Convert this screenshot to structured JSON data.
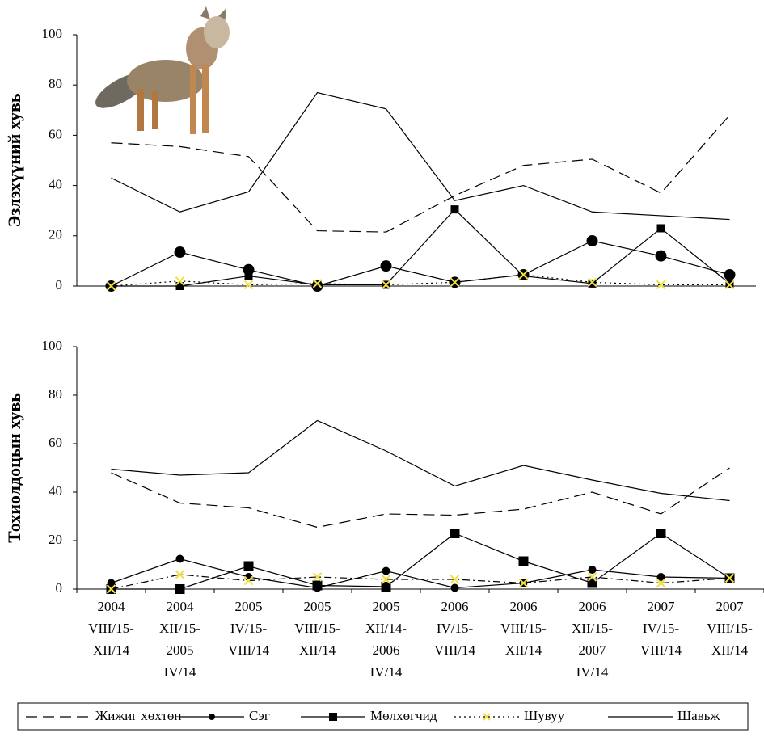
{
  "chart_data": [
    {
      "type": "line",
      "ylabel": "Эзлэхүүний хувь",
      "categories": [
        [
          "2004",
          "VIII/15-",
          "XII/14"
        ],
        [
          "2004",
          "XII/15-",
          "2005",
          "IV/14"
        ],
        [
          "2005",
          "IV/15-",
          "VIII/14"
        ],
        [
          "2005",
          "VIII/15-",
          "XII/14"
        ],
        [
          "2005",
          "XII/14-",
          "2006",
          "IV/14"
        ],
        [
          "2006",
          "IV/15-",
          "VIII/14"
        ],
        [
          "2006",
          "VIII/15-",
          "XII/14"
        ],
        [
          "2006",
          "XII/15-",
          "2007",
          "IV/14"
        ],
        [
          "2007",
          "IV/15-",
          "VIII/14"
        ],
        [
          "2007",
          "VIII/15-",
          "XII/14"
        ]
      ],
      "ylim": [
        0,
        100
      ],
      "yticks": [
        0,
        20,
        40,
        60,
        80,
        100
      ],
      "series": [
        {
          "name": "Жижиг хөхтөн",
          "color": "#000000",
          "style": "dashed",
          "marker": "none",
          "values": [
            57,
            55.5,
            51.5,
            22,
            21.5,
            36,
            48,
            50.5,
            37,
            68
          ]
        },
        {
          "name": "Сэг",
          "color": "#000000",
          "style": "solid",
          "marker": "circle",
          "values": [
            0,
            13.5,
            6.5,
            0,
            8,
            1.5,
            4.5,
            18,
            12,
            4.5
          ]
        },
        {
          "name": "Мөлхөгчид",
          "color": "#000000",
          "style": "solid",
          "marker": "square",
          "values": [
            0,
            0,
            4,
            0.5,
            0.5,
            30.5,
            4,
            1,
            23,
            1
          ]
        },
        {
          "name": "Шувуу",
          "color": "#000000",
          "marker_color": "#f0e040",
          "style": "dotted",
          "marker": "x",
          "values": [
            0,
            2,
            0.5,
            1,
            0.5,
            1.5,
            4.5,
            1.5,
            0.5,
            0.5
          ]
        },
        {
          "name": "Шавьж",
          "color": "#000000",
          "style": "solid",
          "marker": "none",
          "values": [
            43,
            29.5,
            37.5,
            77,
            70.5,
            34,
            40,
            29.5,
            28,
            26.5
          ]
        }
      ]
    },
    {
      "type": "line",
      "ylabel": "Тохиолдоцын хувь",
      "ylim": [
        0,
        100
      ],
      "yticks": [
        0,
        20,
        40,
        60,
        80,
        100
      ],
      "series": [
        {
          "color": "#000000",
          "style": "dashed",
          "marker": "none",
          "values": [
            48,
            35.5,
            33.5,
            25.5,
            31,
            30.5,
            33,
            40,
            31,
            50
          ]
        },
        {
          "color": "#000000",
          "style": "solid",
          "marker": "circle",
          "values": [
            2.5,
            12.5,
            5,
            0.5,
            7.5,
            0.5,
            2.5,
            8,
            5,
            4.5
          ]
        },
        {
          "color": "#000000",
          "style": "solid",
          "marker": "square",
          "values": [
            0,
            0,
            9.5,
            1.5,
            1,
            23,
            11.5,
            2.5,
            23,
            4.5
          ]
        },
        {
          "color": "#000000",
          "marker_color": "#f0e040",
          "style": "dashdot",
          "marker": "x",
          "values": [
            0,
            6,
            3.5,
            5,
            4,
            4,
            2.5,
            5,
            2.5,
            4.5
          ]
        },
        {
          "color": "#000000",
          "style": "solid",
          "marker": "none",
          "values": [
            49.5,
            47,
            48,
            69.5,
            57,
            42.5,
            51,
            45,
            39.5,
            36.5
          ]
        }
      ]
    }
  ]
}
